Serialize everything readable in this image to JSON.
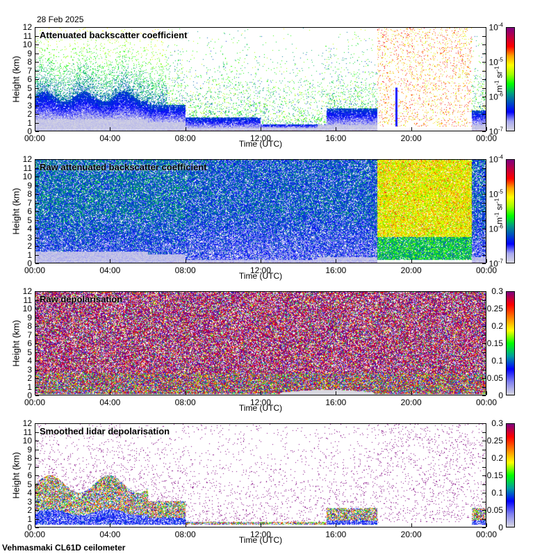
{
  "date": "28 Feb 2025",
  "footer": "Vehmasmaki CL61D ceilometer",
  "chart_data": [
    {
      "type": "heatmap",
      "title": "Attenuated backscatter coefficient",
      "xlabel": "Time (UTC)",
      "ylabel": "Height (km)",
      "ylim": [
        0,
        12
      ],
      "xlim": [
        0,
        24
      ],
      "yticks": [
        "0",
        "1",
        "2",
        "3",
        "4",
        "5",
        "6",
        "7",
        "8",
        "9",
        "10",
        "11",
        "12"
      ],
      "xticks": [
        "00:00",
        "04:00",
        "08:00",
        "12:00",
        "16:00",
        "20:00",
        "00:00"
      ],
      "colorbar": {
        "scale": "log",
        "range": [
          1e-07,
          0.0001
        ],
        "unit_base": "m",
        "unit_exp": "-1",
        "unit_base2": " sr",
        "unit_exp2": "-1",
        "labels": [
          {
            "base": "10",
            "exp": "-7"
          },
          {
            "base": "10",
            "exp": "-6"
          },
          {
            "base": "10",
            "exp": "-5"
          },
          {
            "base": "10",
            "exp": "-4"
          }
        ]
      },
      "mode": "beta"
    },
    {
      "type": "heatmap",
      "title": "Raw attenuated backscatter coefficient",
      "xlabel": "Time (UTC)",
      "ylabel": "Height (km)",
      "ylim": [
        0,
        12
      ],
      "xlim": [
        0,
        24
      ],
      "yticks": [
        "0",
        "1",
        "2",
        "3",
        "4",
        "5",
        "6",
        "7",
        "8",
        "9",
        "10",
        "11",
        "12"
      ],
      "xticks": [
        "00:00",
        "04:00",
        "08:00",
        "12:00",
        "16:00",
        "20:00",
        "00:00"
      ],
      "colorbar": {
        "scale": "log",
        "range": [
          1e-07,
          0.0001
        ],
        "unit_base": "m",
        "unit_exp": "-1",
        "unit_base2": " sr",
        "unit_exp2": "-1",
        "labels": [
          {
            "base": "10",
            "exp": "-7"
          },
          {
            "base": "10",
            "exp": "-6"
          },
          {
            "base": "10",
            "exp": "-5"
          },
          {
            "base": "10",
            "exp": "-4"
          }
        ]
      },
      "mode": "beta_raw"
    },
    {
      "type": "heatmap",
      "title": "Raw depolarisation",
      "xlabel": "Time (UTC)",
      "ylabel": "Height (km)",
      "ylim": [
        0,
        12
      ],
      "xlim": [
        0,
        24
      ],
      "yticks": [
        "0",
        "1",
        "2",
        "3",
        "4",
        "5",
        "6",
        "7",
        "8",
        "9",
        "10",
        "11",
        "12"
      ],
      "xticks": [
        "00:00",
        "04:00",
        "08:00",
        "12:00",
        "16:00",
        "20:00",
        "00:00"
      ],
      "colorbar": {
        "scale": "linear",
        "range": [
          0,
          0.3
        ],
        "labels": [
          {
            "base": "0"
          },
          {
            "base": "0.05"
          },
          {
            "base": "0.1"
          },
          {
            "base": "0.15"
          },
          {
            "base": "0.2"
          },
          {
            "base": "0.25"
          },
          {
            "base": "0.3"
          }
        ]
      },
      "mode": "depol_raw"
    },
    {
      "type": "heatmap",
      "title": "Smoothed lidar depolarisation",
      "xlabel": "Time (UTC)",
      "ylabel": "Height (km)",
      "ylim": [
        0,
        12
      ],
      "xlim": [
        0,
        24
      ],
      "yticks": [
        "0",
        "1",
        "2",
        "3",
        "4",
        "5",
        "6",
        "7",
        "8",
        "9",
        "10",
        "11",
        "12"
      ],
      "xticks": [
        "00:00",
        "04:00",
        "08:00",
        "12:00",
        "16:00",
        "20:00",
        "00:00"
      ],
      "colorbar": {
        "scale": "linear",
        "range": [
          0,
          0.3
        ],
        "labels": [
          {
            "base": "0"
          },
          {
            "base": "0.05"
          },
          {
            "base": "0.1"
          },
          {
            "base": "0.15"
          },
          {
            "base": "0.2"
          },
          {
            "base": "0.25"
          },
          {
            "base": "0.3"
          }
        ]
      },
      "mode": "depol"
    }
  ],
  "colormaps": {
    "beta": [
      "#d8d8e0",
      "#a8a8f0",
      "#0000ff",
      "#0050c0",
      "#00a080",
      "#00ff00",
      "#a0ff00",
      "#ffff00",
      "#ffa000",
      "#ff0000",
      "#c00040",
      "#800080"
    ],
    "depol": [
      "#d8d8e0",
      "#8080f0",
      "#0000ff",
      "#00a0a0",
      "#00ff00",
      "#ffff00",
      "#ff8000",
      "#ff0000",
      "#800080"
    ]
  }
}
